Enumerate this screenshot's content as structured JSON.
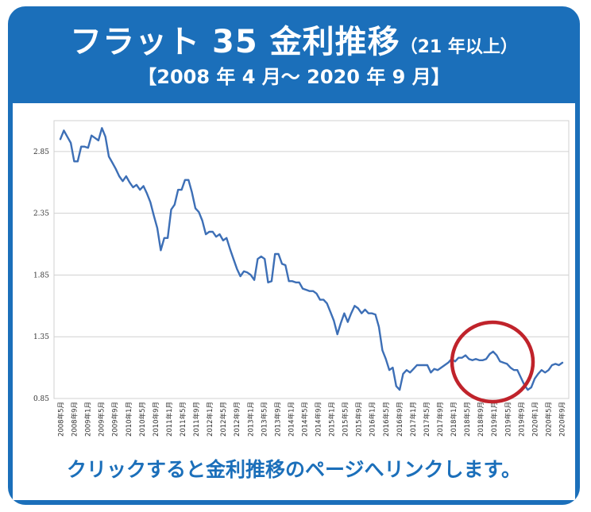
{
  "banner": {
    "title_main": "フラット 35 金利推移",
    "title_sub": "（21 年以上）",
    "period": "【2008 年 4 月～ 2020 年 9 月】",
    "cta": "クリックすると金利推移のページへリンクします。"
  },
  "colors": {
    "brand_blue": "#1b6fba",
    "line": "#3d6fb6",
    "highlight_circle": "#c0232b",
    "grid": "#d0d0d0"
  },
  "chart_data": {
    "type": "line",
    "title": "",
    "xlabel": "",
    "ylabel": "",
    "ylim": [
      0.85,
      3.1
    ],
    "yticks": [
      "0.85",
      "1.35",
      "1.85",
      "2.35",
      "2.85"
    ],
    "ytick_values": [
      0.85,
      1.35,
      1.85,
      2.35,
      2.85
    ],
    "xtick_labels": [
      "2008年5月",
      "2008年9月",
      "2009年1月",
      "2009年5月",
      "2009年9月",
      "2010年1月",
      "2010年5月",
      "2010年9月",
      "2011年1月",
      "2011年5月",
      "2011年9月",
      "2012年1月",
      "2012年5月",
      "2012年9月",
      "2013年1月",
      "2013年5月",
      "2013年9月",
      "2014年1月",
      "2014年5月",
      "2014年9月",
      "2015年1月",
      "2015年5月",
      "2015年9月",
      "2016年1月",
      "2016年5月",
      "2016年9月",
      "2017年1月",
      "2017年5月",
      "2017年9月",
      "2018年1月",
      "2018年5月",
      "2018年9月",
      "2019年1月",
      "2019年5月",
      "2019年9月",
      "2020年1月",
      "2020年5月",
      "2020年9月"
    ],
    "grid": "horizontal",
    "annotation": "red circle highlighting late 2019 to 2020",
    "series": [
      {
        "values": [
          2.95,
          3.02,
          2.97,
          2.92,
          2.77,
          2.77,
          2.89,
          2.89,
          2.88,
          2.98,
          2.96,
          2.94,
          3.04,
          2.97,
          2.81,
          2.76,
          2.71,
          2.65,
          2.61,
          2.65,
          2.6,
          2.56,
          2.58,
          2.54,
          2.57,
          2.51,
          2.44,
          2.33,
          2.23,
          2.05,
          2.15,
          2.15,
          2.38,
          2.42,
          2.54,
          2.54,
          2.62,
          2.62,
          2.52,
          2.39,
          2.36,
          2.29,
          2.18,
          2.2,
          2.2,
          2.16,
          2.18,
          2.13,
          2.15,
          2.06,
          1.98,
          1.9,
          1.84,
          1.88,
          1.87,
          1.85,
          1.81,
          1.98,
          2.0,
          1.98,
          1.79,
          1.8,
          2.02,
          2.02,
          1.94,
          1.93,
          1.8,
          1.8,
          1.79,
          1.79,
          1.74,
          1.73,
          1.72,
          1.72,
          1.7,
          1.65,
          1.65,
          1.62,
          1.55,
          1.48,
          1.37,
          1.46,
          1.54,
          1.47,
          1.54,
          1.6,
          1.58,
          1.54,
          1.57,
          1.54,
          1.54,
          1.53,
          1.43,
          1.24,
          1.17,
          1.08,
          1.1,
          0.95,
          0.92,
          1.05,
          1.08,
          1.06,
          1.09,
          1.12,
          1.12,
          1.12,
          1.12,
          1.06,
          1.09,
          1.08,
          1.1,
          1.12,
          1.14,
          1.17,
          1.15,
          1.18,
          1.18,
          1.2,
          1.17,
          1.16,
          1.17,
          1.16,
          1.16,
          1.17,
          1.21,
          1.23,
          1.2,
          1.15,
          1.14,
          1.13,
          1.1,
          1.08,
          1.08,
          1.02,
          0.96,
          0.92,
          0.94,
          1.01,
          1.05,
          1.08,
          1.06,
          1.08,
          1.12,
          1.13,
          1.12,
          1.14
        ]
      }
    ]
  }
}
